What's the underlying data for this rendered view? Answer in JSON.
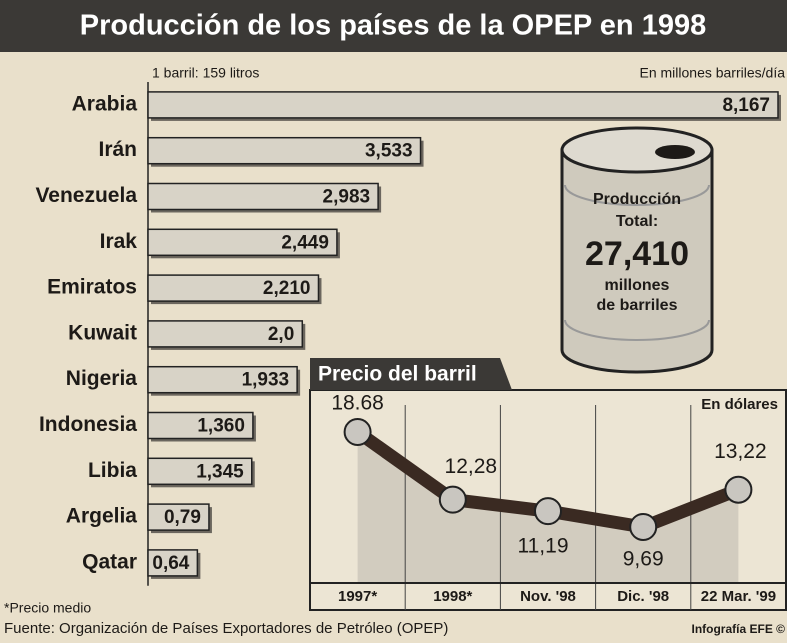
{
  "chart_data": [
    {
      "type": "hbar",
      "title": "Producción de los países de la OPEP en 1998",
      "subtitle": "1 barril: 159 litros",
      "unit_note": "En millones barriles/día",
      "categories": [
        "Arabia",
        "Irán",
        "Venezuela",
        "Irak",
        "Emiratos",
        "Kuwait",
        "Nigeria",
        "Indonesia",
        "Libia",
        "Argelia",
        "Qatar"
      ],
      "values": [
        8.167,
        3.533,
        2.983,
        2.449,
        2.21,
        2.0,
        1.933,
        1.36,
        1.345,
        0.79,
        0.64
      ],
      "value_labels": [
        "8,167",
        "3,533",
        "2,983",
        "2,449",
        "2,210",
        "2,0",
        "1,933",
        "1,360",
        "1,345",
        "0,79",
        "0,64"
      ],
      "color": "#d8d3c7",
      "annotations": [
        "Producción",
        "Total:",
        "27,410",
        "millones",
        "de barriles"
      ]
    },
    {
      "type": "line",
      "title": "Precio del barril",
      "unit_note": "En dólares",
      "categories": [
        "1997*",
        "1998*",
        "Nov. '98",
        "Dic. '98",
        "22 Mar. '99"
      ],
      "values": [
        18.68,
        12.28,
        11.19,
        9.69,
        13.22
      ],
      "value_labels": [
        "18.68",
        "12,28",
        "11,19",
        "9,69",
        "13,22"
      ],
      "color": "#3a2a22"
    }
  ],
  "notes": [
    "*Precio medio",
    "Fuente: Organización de Países Exportadores de Petróleo (OPEP)"
  ],
  "credit": "Infografía EFE ©"
}
